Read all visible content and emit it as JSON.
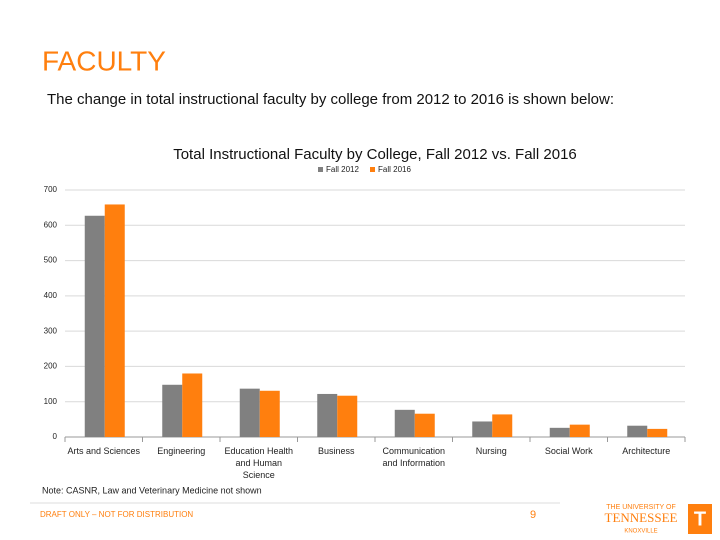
{
  "header": {
    "title": "FACULTY",
    "subtitle": "The change in total instructional faculty by college from 2012 to 2016 is shown below:"
  },
  "chart_data": {
    "type": "bar",
    "title": "Total Instructional Faculty by College, Fall 2012 vs. Fall 2016",
    "categories": [
      "Arts and Sciences",
      "Engineering",
      "Education Health and Human Science",
      "Business",
      "Communication and Information",
      "Nursing",
      "Social Work",
      "Architecture"
    ],
    "series": [
      {
        "name": "Fall 2012",
        "color": "#808080",
        "values": [
          627,
          148,
          137,
          122,
          77,
          44,
          26,
          32
        ]
      },
      {
        "name": "Fall 2016",
        "color": "#ff7f0e",
        "values": [
          659,
          180,
          131,
          117,
          66,
          64,
          35,
          23
        ]
      }
    ],
    "ylim": [
      0,
      700
    ],
    "yticks": [
      0,
      100,
      200,
      300,
      400,
      500,
      600,
      700
    ],
    "grid": true,
    "legend": "top"
  },
  "note": "Note: CASNR, Law and Veterinary Medicine not shown",
  "footer": {
    "draft": "DRAFT ONLY – NOT FOR DISTRIBUTION",
    "page": "9",
    "logo": [
      "THE UNIVERSITY OF",
      "TENNESSEE",
      "KNOXVILLE"
    ],
    "mark": "T"
  }
}
